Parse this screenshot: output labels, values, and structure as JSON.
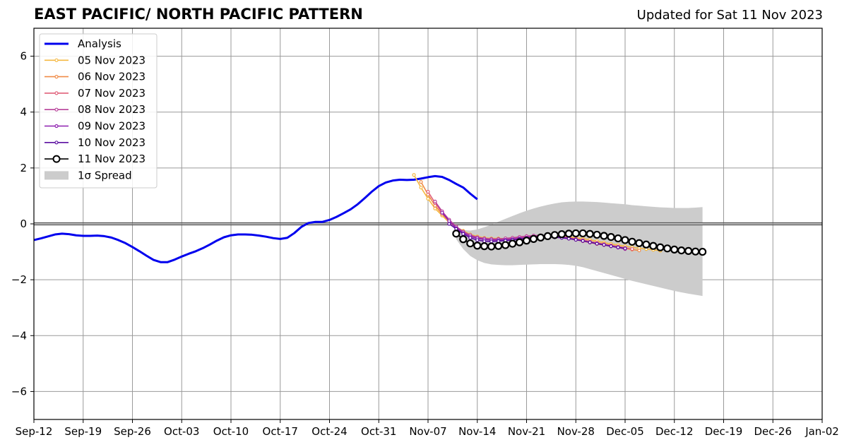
{
  "chart_data": {
    "type": "line",
    "title": "EAST PACIFIC/ NORTH PACIFIC PATTERN",
    "subtitle": "Updated for Sat 11 Nov 2023",
    "xlabel": "",
    "ylabel": "",
    "x_axis": {
      "type": "date",
      "range": [
        "2023-09-12",
        "2024-01-02"
      ],
      "ticks": [
        "2023-09-12",
        "2023-09-19",
        "2023-09-26",
        "2023-10-03",
        "2023-10-10",
        "2023-10-17",
        "2023-10-24",
        "2023-10-31",
        "2023-11-07",
        "2023-11-14",
        "2023-11-21",
        "2023-11-28",
        "2023-12-05",
        "2023-12-12",
        "2023-12-19",
        "2023-12-26",
        "2024-01-02"
      ],
      "tick_labels": [
        "Sep-12",
        "Sep-19",
        "Sep-26",
        "Oct-03",
        "Oct-10",
        "Oct-17",
        "Oct-24",
        "Oct-31",
        "Nov-07",
        "Nov-14",
        "Nov-21",
        "Nov-28",
        "Dec-05",
        "Dec-12",
        "Dec-19",
        "Dec-26",
        "Jan-02"
      ]
    },
    "y_axis": {
      "range": [
        -7,
        7
      ],
      "ticks": [
        -6,
        -4,
        -2,
        0,
        2,
        4,
        6
      ],
      "tick_labels": [
        "−6",
        "−4",
        "−2",
        "0",
        "2",
        "4",
        "6"
      ]
    },
    "grid": true,
    "legend": {
      "placement": "top-left",
      "entries": [
        {
          "label": "Analysis",
          "color": "#0000ee",
          "kind": "line"
        },
        {
          "label": "05 Nov 2023",
          "color": "#f5b942",
          "kind": "line-marker"
        },
        {
          "label": "06 Nov 2023",
          "color": "#f08c48",
          "kind": "line-marker"
        },
        {
          "label": "07 Nov 2023",
          "color": "#e0607a",
          "kind": "line-marker"
        },
        {
          "label": "08 Nov 2023",
          "color": "#b8419a",
          "kind": "line-marker"
        },
        {
          "label": "09 Nov 2023",
          "color": "#8e1fb0",
          "kind": "line-marker"
        },
        {
          "label": "10 Nov 2023",
          "color": "#5b0fa0",
          "kind": "line-marker"
        },
        {
          "label": "11 Nov 2023",
          "color": "#000000",
          "kind": "open-circle"
        },
        {
          "label": "1σ Spread",
          "color": "#cccccc",
          "kind": "patch"
        }
      ]
    },
    "analysis": {
      "name": "Analysis",
      "color": "#0000ee",
      "start_date": "2023-09-12",
      "values": [
        -0.58,
        -0.52,
        -0.45,
        -0.38,
        -0.35,
        -0.37,
        -0.41,
        -0.43,
        -0.43,
        -0.42,
        -0.44,
        -0.49,
        -0.58,
        -0.69,
        -0.83,
        -0.98,
        -1.14,
        -1.29,
        -1.37,
        -1.37,
        -1.28,
        -1.17,
        -1.07,
        -0.98,
        -0.87,
        -0.74,
        -0.6,
        -0.48,
        -0.41,
        -0.38,
        -0.38,
        -0.39,
        -0.42,
        -0.46,
        -0.51,
        -0.54,
        -0.5,
        -0.33,
        -0.11,
        0.03,
        0.07,
        0.07,
        0.14,
        0.25,
        0.38,
        0.52,
        0.7,
        0.92,
        1.15,
        1.35,
        1.48,
        1.55,
        1.58,
        1.57,
        1.58,
        1.62,
        1.67,
        1.71,
        1.68,
        1.57,
        1.43,
        1.3,
        1.08,
        0.88
      ]
    },
    "forecasts": [
      {
        "name": "05 Nov 2023",
        "color": "#f5b942",
        "start_date": "2023-11-05",
        "values": [
          1.75,
          1.3,
          0.9,
          0.55,
          0.3,
          0.05,
          -0.12,
          -0.25,
          -0.38,
          -0.45,
          -0.5,
          -0.52,
          -0.52,
          -0.53,
          -0.52,
          -0.5,
          -0.5,
          -0.48,
          -0.46,
          -0.45,
          -0.45,
          -0.46,
          -0.47,
          -0.5,
          -0.53,
          -0.57,
          -0.62,
          -0.67,
          -0.72,
          -0.76,
          -0.8,
          -0.84,
          -0.87,
          -0.9,
          -0.93,
          -0.96
        ]
      },
      {
        "name": "06 Nov 2023",
        "color": "#f08c48",
        "start_date": "2023-11-06",
        "values": [
          1.5,
          1.05,
          0.65,
          0.35,
          0.1,
          -0.1,
          -0.28,
          -0.4,
          -0.48,
          -0.52,
          -0.54,
          -0.54,
          -0.52,
          -0.5,
          -0.47,
          -0.44,
          -0.43,
          -0.43,
          -0.44,
          -0.46,
          -0.49,
          -0.53,
          -0.57,
          -0.62,
          -0.67,
          -0.72,
          -0.76,
          -0.8,
          -0.84,
          -0.88,
          -0.92,
          -0.95
        ]
      },
      {
        "name": "07 Nov 2023",
        "color": "#e0607a",
        "start_date": "2023-11-07",
        "values": [
          1.15,
          0.75,
          0.4,
          0.12,
          -0.1,
          -0.28,
          -0.42,
          -0.5,
          -0.55,
          -0.58,
          -0.58,
          -0.56,
          -0.53,
          -0.5,
          -0.47,
          -0.44,
          -0.43,
          -0.43,
          -0.44,
          -0.47,
          -0.5,
          -0.54,
          -0.58,
          -0.63,
          -0.68,
          -0.72,
          -0.77,
          -0.81,
          -0.86,
          -0.9
        ]
      },
      {
        "name": "08 Nov 2023",
        "color": "#b8419a",
        "start_date": "2023-11-08",
        "values": [
          0.8,
          0.45,
          0.15,
          -0.1,
          -0.28,
          -0.4,
          -0.48,
          -0.52,
          -0.54,
          -0.54,
          -0.52,
          -0.5,
          -0.47,
          -0.44,
          -0.42,
          -0.41,
          -0.42,
          -0.44,
          -0.47,
          -0.51,
          -0.56,
          -0.61,
          -0.66,
          -0.7,
          -0.75,
          -0.8,
          -0.85,
          -0.9
        ]
      },
      {
        "name": "09 Nov 2023",
        "color": "#8e1fb0",
        "start_date": "2023-11-09",
        "values": [
          0.4,
          0.1,
          -0.15,
          -0.32,
          -0.45,
          -0.52,
          -0.56,
          -0.58,
          -0.58,
          -0.57,
          -0.55,
          -0.52,
          -0.49,
          -0.46,
          -0.45,
          -0.45,
          -0.46,
          -0.48,
          -0.52,
          -0.56,
          -0.61,
          -0.66,
          -0.71,
          -0.75,
          -0.8,
          -0.84,
          -0.88
        ]
      },
      {
        "name": "10 Nov 2023",
        "color": "#5b0fa0",
        "start_date": "2023-11-10",
        "values": [
          0.0,
          -0.18,
          -0.36,
          -0.5,
          -0.58,
          -0.62,
          -0.63,
          -0.62,
          -0.6,
          -0.58,
          -0.55,
          -0.52,
          -0.49,
          -0.47,
          -0.47,
          -0.48,
          -0.5,
          -0.53,
          -0.57,
          -0.61,
          -0.66,
          -0.71,
          -0.75,
          -0.8,
          -0.84,
          -0.88
        ]
      },
      {
        "name": "11 Nov 2023",
        "color": "#000000",
        "start_date": "2023-11-11",
        "values": [
          -0.35,
          -0.55,
          -0.7,
          -0.78,
          -0.8,
          -0.81,
          -0.79,
          -0.76,
          -0.71,
          -0.66,
          -0.6,
          -0.54,
          -0.49,
          -0.44,
          -0.4,
          -0.37,
          -0.35,
          -0.34,
          -0.34,
          -0.36,
          -0.39,
          -0.43,
          -0.47,
          -0.52,
          -0.58,
          -0.64,
          -0.69,
          -0.74,
          -0.79,
          -0.84,
          -0.88,
          -0.92,
          -0.95,
          -0.97,
          -0.99,
          -1.0
        ]
      }
    ],
    "spread": {
      "name": "1σ Spread",
      "color": "#cccccc",
      "start_date": "2023-11-11",
      "upper": [
        -0.15,
        -0.22,
        -0.24,
        -0.2,
        -0.12,
        -0.03,
        0.08,
        0.18,
        0.28,
        0.38,
        0.47,
        0.55,
        0.62,
        0.68,
        0.73,
        0.77,
        0.79,
        0.8,
        0.8,
        0.79,
        0.78,
        0.76,
        0.74,
        0.72,
        0.7,
        0.67,
        0.65,
        0.63,
        0.61,
        0.59,
        0.58,
        0.57,
        0.57,
        0.57,
        0.58,
        0.6
      ],
      "lower": [
        -0.55,
        -0.9,
        -1.15,
        -1.3,
        -1.4,
        -1.45,
        -1.47,
        -1.48,
        -1.48,
        -1.47,
        -1.46,
        -1.45,
        -1.44,
        -1.44,
        -1.44,
        -1.45,
        -1.47,
        -1.5,
        -1.55,
        -1.62,
        -1.69,
        -1.76,
        -1.83,
        -1.9,
        -1.97,
        -2.04,
        -2.1,
        -2.16,
        -2.22,
        -2.28,
        -2.34,
        -2.4,
        -2.45,
        -2.5,
        -2.54,
        -2.58
      ]
    }
  }
}
